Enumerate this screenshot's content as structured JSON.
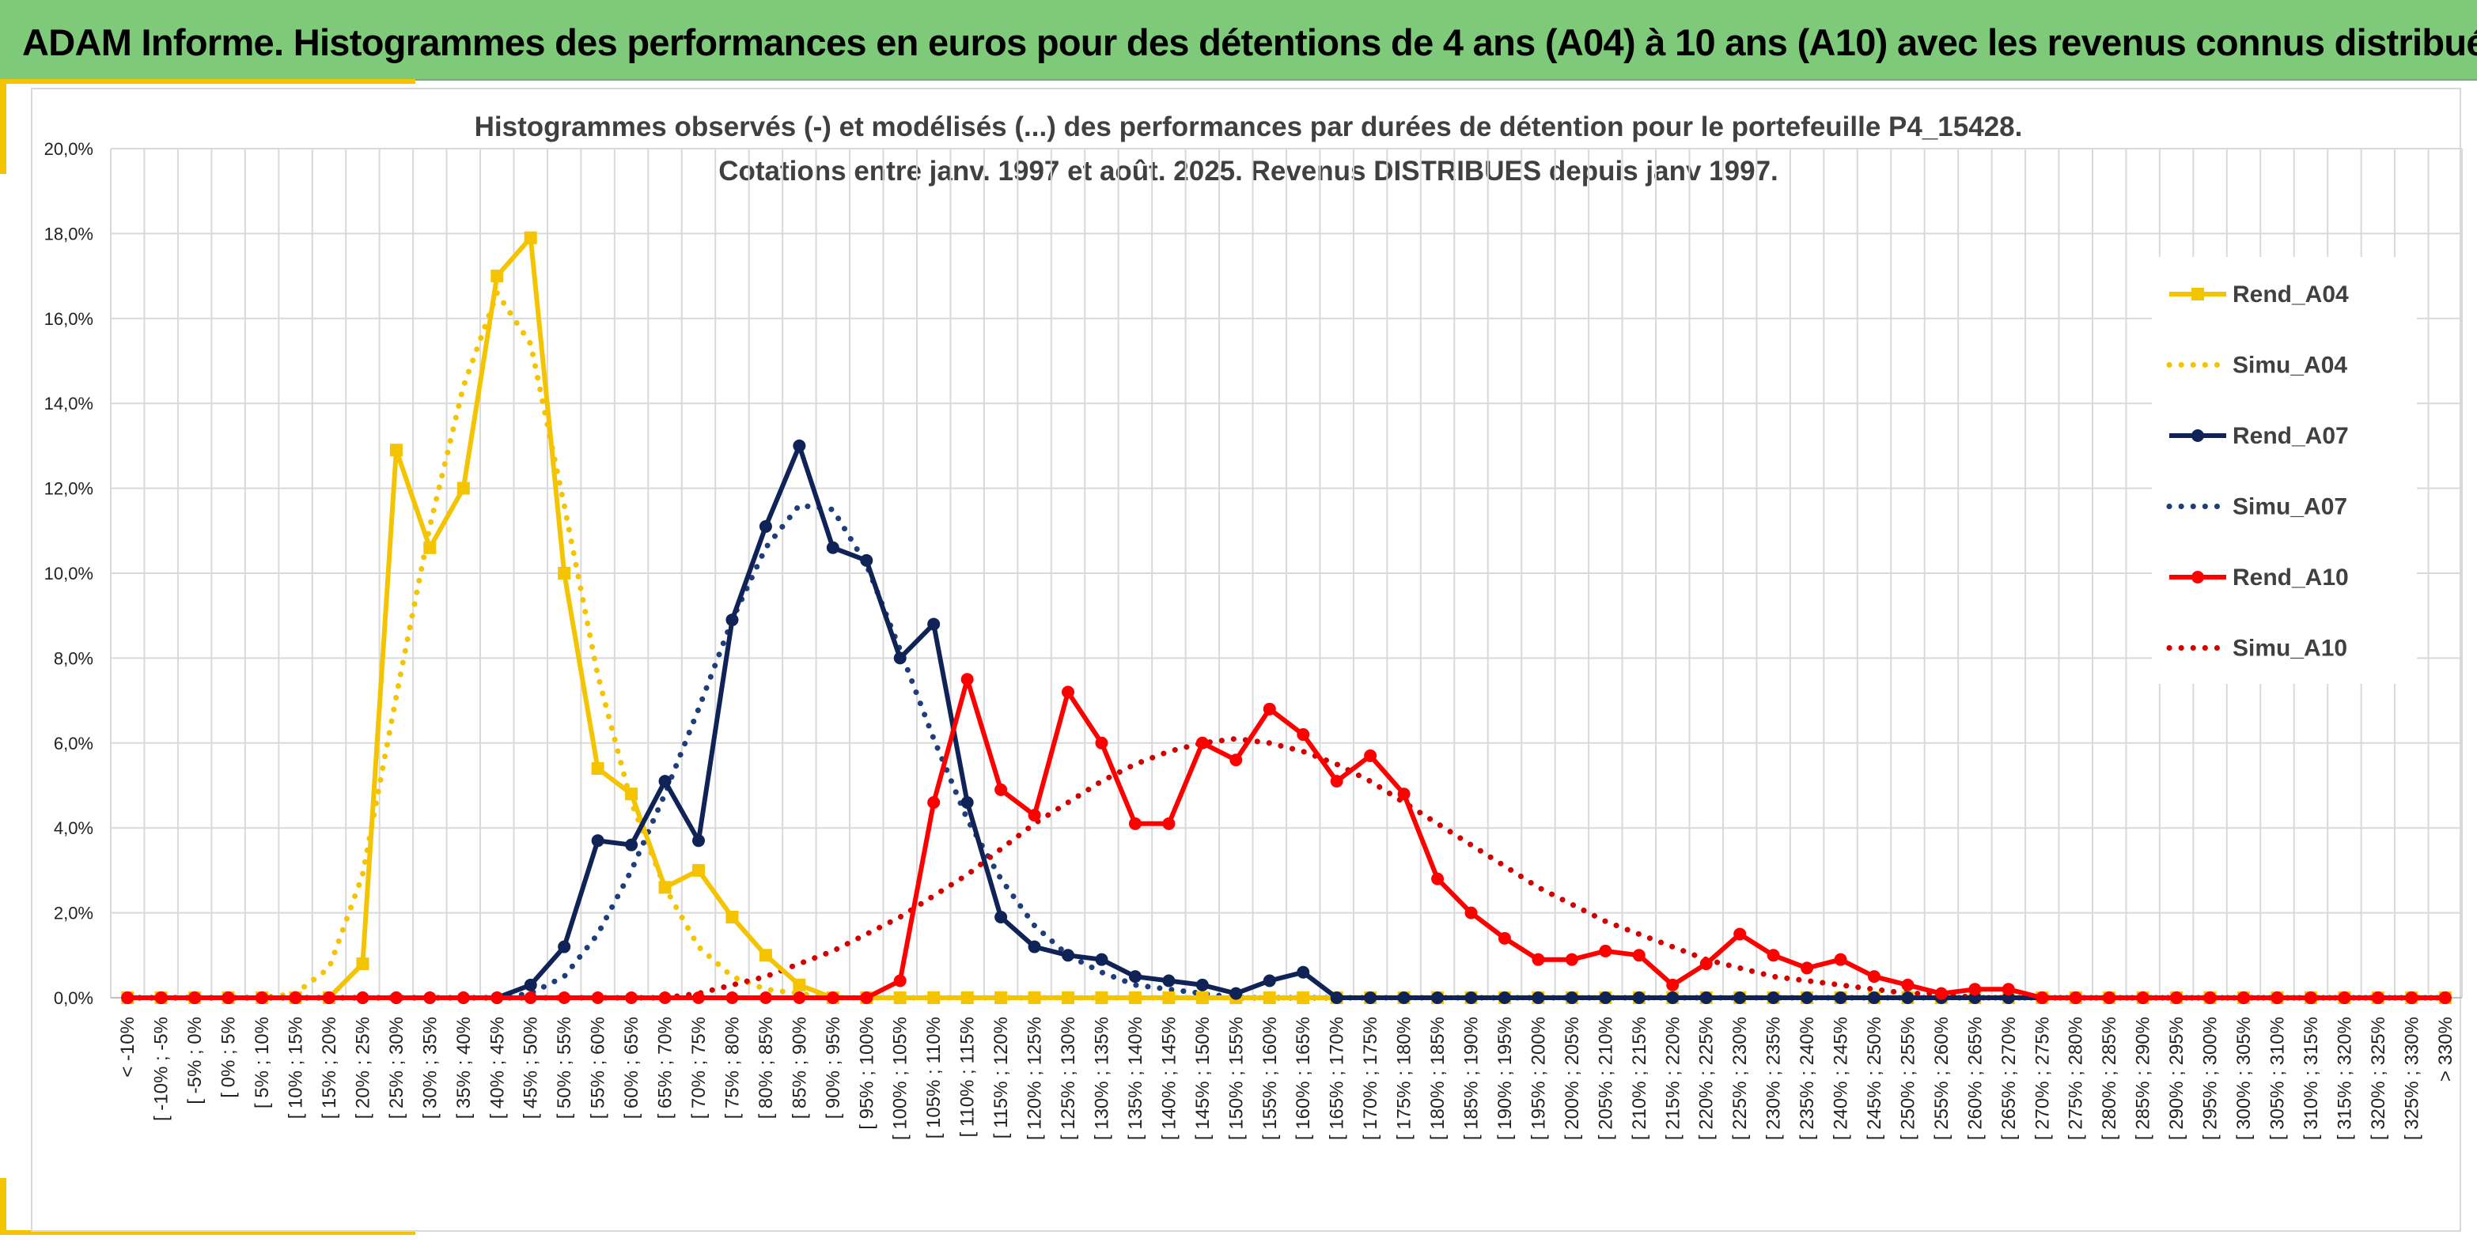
{
  "header": {
    "title": "ADAM Informe. Histogrammes des performances en euros pour des détentions de 4 ans (A04) à 10 ans (A10) avec les revenus connus distribués"
  },
  "chart_data": {
    "type": "line",
    "title_line1": "Histogrammes observés (-) et modélisés (...) des performances par durées de détention pour le portefeuille P4_15428.",
    "title_line2": "Cotations entre janv. 1997 et août. 2025. Revenus DISTRIBUES depuis janv 1997.",
    "xlabel": "",
    "ylabel": "",
    "ylim": [
      0,
      20
    ],
    "yticks": [
      "0,0%",
      "2,0%",
      "4,0%",
      "6,0%",
      "8,0%",
      "10,0%",
      "12,0%",
      "14,0%",
      "16,0%",
      "18,0%",
      "20,0%"
    ],
    "grid": true,
    "legend_position": "right",
    "categories": [
      "< -10%",
      "[ -10% ; -5%",
      "[ -5% ; 0%",
      "[ 0% ; 5%",
      "[ 5% ; 10%",
      "[ 10% ; 15%",
      "[ 15% ; 20%",
      "[ 20% ; 25%",
      "[ 25% ; 30%",
      "[ 30% ; 35%",
      "[ 35% ; 40%",
      "[ 40% ; 45%",
      "[ 45% ; 50%",
      "[ 50% ; 55%",
      "[ 55% ; 60%",
      "[ 60% ; 65%",
      "[ 65% ; 70%",
      "[ 70% ; 75%",
      "[ 75% ; 80%",
      "[ 80% ; 85%",
      "[ 85% ; 90%",
      "[ 90% ; 95%",
      "[ 95% ; 100%",
      "[ 100% ; 105%",
      "[ 105% ; 110%",
      "[ 110% ; 115%",
      "[ 115% ; 120%",
      "[ 120% ; 125%",
      "[ 125% ; 130%",
      "[ 130% ; 135%",
      "[ 135% ; 140%",
      "[ 140% ; 145%",
      "[ 145% ; 150%",
      "[ 150% ; 155%",
      "[ 155% ; 160%",
      "[ 160% ; 165%",
      "[ 165% ; 170%",
      "[ 170% ; 175%",
      "[ 175% ; 180%",
      "[ 180% ; 185%",
      "[ 185% ; 190%",
      "[ 190% ; 195%",
      "[ 195% ; 200%",
      "[ 200% ; 205%",
      "[ 205% ; 210%",
      "[ 210% ; 215%",
      "[ 215% ; 220%",
      "[ 220% ; 225%",
      "[ 225% ; 230%",
      "[ 230% ; 235%",
      "[ 235% ; 240%",
      "[ 240% ; 245%",
      "[ 245% ; 250%",
      "[ 250% ; 255%",
      "[ 255% ; 260%",
      "[ 260% ; 265%",
      "[ 265% ; 270%",
      "[ 270% ; 275%",
      "[ 275% ; 280%",
      "[ 280% ; 285%",
      "[ 285% ; 290%",
      "[ 290% ; 295%",
      "[ 295% ; 300%",
      "[ 300% ; 305%",
      "[ 305% ; 310%",
      "[ 310% ; 315%",
      "[ 315% ; 320%",
      "[ 320% ; 325%",
      "[ 325% ; 330%",
      "> 330%"
    ],
    "series": [
      {
        "name": "Rend_A04",
        "style": "solid",
        "marker": "square",
        "color": "#f5c400",
        "values": [
          0,
          0,
          0,
          0,
          0,
          0,
          0,
          0.8,
          12.9,
          10.6,
          12.0,
          17.0,
          17.9,
          10.0,
          5.4,
          4.8,
          2.6,
          3.0,
          1.9,
          1.0,
          0.3,
          0,
          0,
          0,
          0,
          0,
          0,
          0,
          0,
          0,
          0,
          0,
          0,
          0,
          0,
          0,
          0,
          0,
          0,
          0,
          0,
          0,
          0,
          0,
          0,
          0,
          0,
          0,
          0,
          0,
          0,
          0,
          0,
          0,
          0,
          0,
          0,
          0,
          0,
          0,
          0,
          0,
          0,
          0,
          0,
          0,
          0,
          0,
          0,
          0
        ]
      },
      {
        "name": "Simu_A04",
        "style": "dotted",
        "marker": "none",
        "color": "#f5c400",
        "values": [
          0,
          0,
          0,
          0,
          0,
          0.1,
          0.7,
          2.9,
          7.1,
          11.1,
          14.4,
          16.6,
          15.4,
          11.6,
          7.6,
          4.6,
          2.6,
          1.2,
          0.5,
          0.2,
          0.1,
          0,
          0,
          0,
          0,
          0,
          0,
          0,
          0,
          0,
          0,
          0,
          0,
          0,
          0,
          0,
          0,
          0,
          0,
          0,
          0,
          0,
          0,
          0,
          0,
          0,
          0,
          0,
          0,
          0,
          0,
          0,
          0,
          0,
          0,
          0,
          0,
          0,
          0,
          0,
          0,
          0,
          0,
          0,
          0,
          0,
          0,
          0,
          0,
          0
        ]
      },
      {
        "name": "Rend_A07",
        "style": "solid",
        "marker": "circle",
        "color": "#0f2356",
        "values": [
          0,
          0,
          0,
          0,
          0,
          0,
          0,
          0,
          0,
          0,
          0,
          0,
          0.3,
          1.2,
          3.7,
          3.6,
          5.1,
          3.7,
          8.9,
          11.1,
          13.0,
          10.6,
          10.3,
          8.0,
          8.8,
          4.6,
          1.9,
          1.2,
          1.0,
          0.9,
          0.5,
          0.4,
          0.3,
          0.1,
          0.4,
          0.6,
          0,
          0,
          0,
          0,
          0,
          0,
          0,
          0,
          0,
          0,
          0,
          0,
          0,
          0,
          0,
          0,
          0,
          0,
          0,
          0,
          0,
          0,
          0,
          0,
          0,
          0,
          0,
          0,
          0,
          0,
          0,
          0,
          0,
          0
        ]
      },
      {
        "name": "Simu_A07",
        "style": "dotted",
        "marker": "none",
        "color": "#1f3d7a",
        "values": [
          0,
          0,
          0,
          0,
          0,
          0,
          0,
          0,
          0,
          0,
          0,
          0,
          0.1,
          0.5,
          1.5,
          3.0,
          4.8,
          6.8,
          8.9,
          10.6,
          11.6,
          11.5,
          10.2,
          8.2,
          6.1,
          4.2,
          2.8,
          1.7,
          1.0,
          0.6,
          0.3,
          0.2,
          0.1,
          0,
          0,
          0,
          0,
          0,
          0,
          0,
          0,
          0,
          0,
          0,
          0,
          0,
          0,
          0,
          0,
          0,
          0,
          0,
          0,
          0,
          0,
          0,
          0,
          0,
          0,
          0,
          0,
          0,
          0,
          0,
          0,
          0,
          0,
          0,
          0,
          0
        ]
      },
      {
        "name": "Rend_A10",
        "style": "solid",
        "marker": "circle",
        "color": "#ff0000",
        "values": [
          0,
          0,
          0,
          0,
          0,
          0,
          0,
          0,
          0,
          0,
          0,
          0,
          0,
          0,
          0,
          0,
          0,
          0,
          0,
          0,
          0,
          0,
          0,
          0.4,
          4.6,
          7.5,
          4.9,
          4.3,
          7.2,
          6.0,
          4.1,
          4.1,
          6.0,
          5.6,
          6.8,
          6.2,
          5.1,
          5.7,
          4.8,
          2.8,
          2.0,
          1.4,
          0.9,
          0.9,
          1.1,
          1.0,
          0.3,
          0.8,
          1.5,
          1.0,
          0.7,
          0.9,
          0.5,
          0.3,
          0.1,
          0.2,
          0.2,
          0,
          0,
          0,
          0,
          0,
          0,
          0,
          0,
          0,
          0,
          0,
          0,
          0
        ]
      },
      {
        "name": "Simu_A10",
        "style": "dotted",
        "marker": "none",
        "color": "#d40000",
        "values": [
          0,
          0,
          0,
          0,
          0,
          0,
          0,
          0,
          0,
          0,
          0,
          0,
          0,
          0,
          0,
          0,
          0,
          0.1,
          0.3,
          0.5,
          0.8,
          1.1,
          1.5,
          1.9,
          2.4,
          2.9,
          3.5,
          4.1,
          4.6,
          5.1,
          5.5,
          5.8,
          6.0,
          6.1,
          6.0,
          5.8,
          5.5,
          5.1,
          4.6,
          4.1,
          3.6,
          3.1,
          2.6,
          2.2,
          1.8,
          1.5,
          1.2,
          0.9,
          0.7,
          0.5,
          0.4,
          0.3,
          0.2,
          0.1,
          0.1,
          0,
          0,
          0,
          0,
          0,
          0,
          0,
          0,
          0,
          0,
          0,
          0,
          0,
          0,
          0
        ]
      }
    ]
  }
}
